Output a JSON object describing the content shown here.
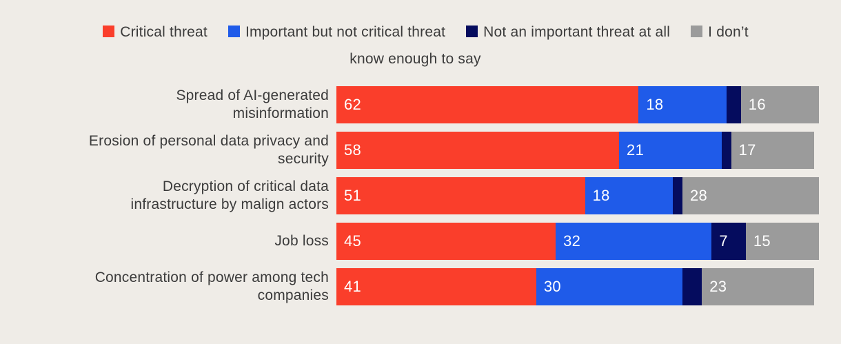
{
  "theme": {
    "background": "#EFECE7",
    "text_color": "#3B3B3B",
    "value_label_color": "#FFFFFF"
  },
  "chart_data": {
    "type": "bar",
    "orientation": "horizontal",
    "stacked": true,
    "legend_position": "top",
    "axes_hidden": true,
    "xlim": [
      0,
      100
    ],
    "categories": [
      "Spread of AI-generated\nmisinformation",
      "Erosion of personal data privacy and\nsecurity",
      "Decryption of critical data\ninfrastructure by malign actors",
      "Job loss",
      "Concentration of power among tech\ncompanies"
    ],
    "series": [
      {
        "name": "Critical threat",
        "color": "#FA3E2B",
        "values": [
          62,
          58,
          51,
          45,
          41
        ]
      },
      {
        "name": "Important but not critical threat",
        "color": "#1F5BE9",
        "values": [
          18,
          21,
          18,
          32,
          30
        ]
      },
      {
        "name": "Not an important threat at all",
        "color": "#050C5E",
        "values": [
          3,
          2,
          2,
          7,
          4
        ]
      },
      {
        "name": "I don’t know enough to say",
        "color": "#9B9B9B",
        "values": [
          16,
          17,
          28,
          15,
          23
        ],
        "legend_break_after": "I don’t"
      }
    ]
  }
}
